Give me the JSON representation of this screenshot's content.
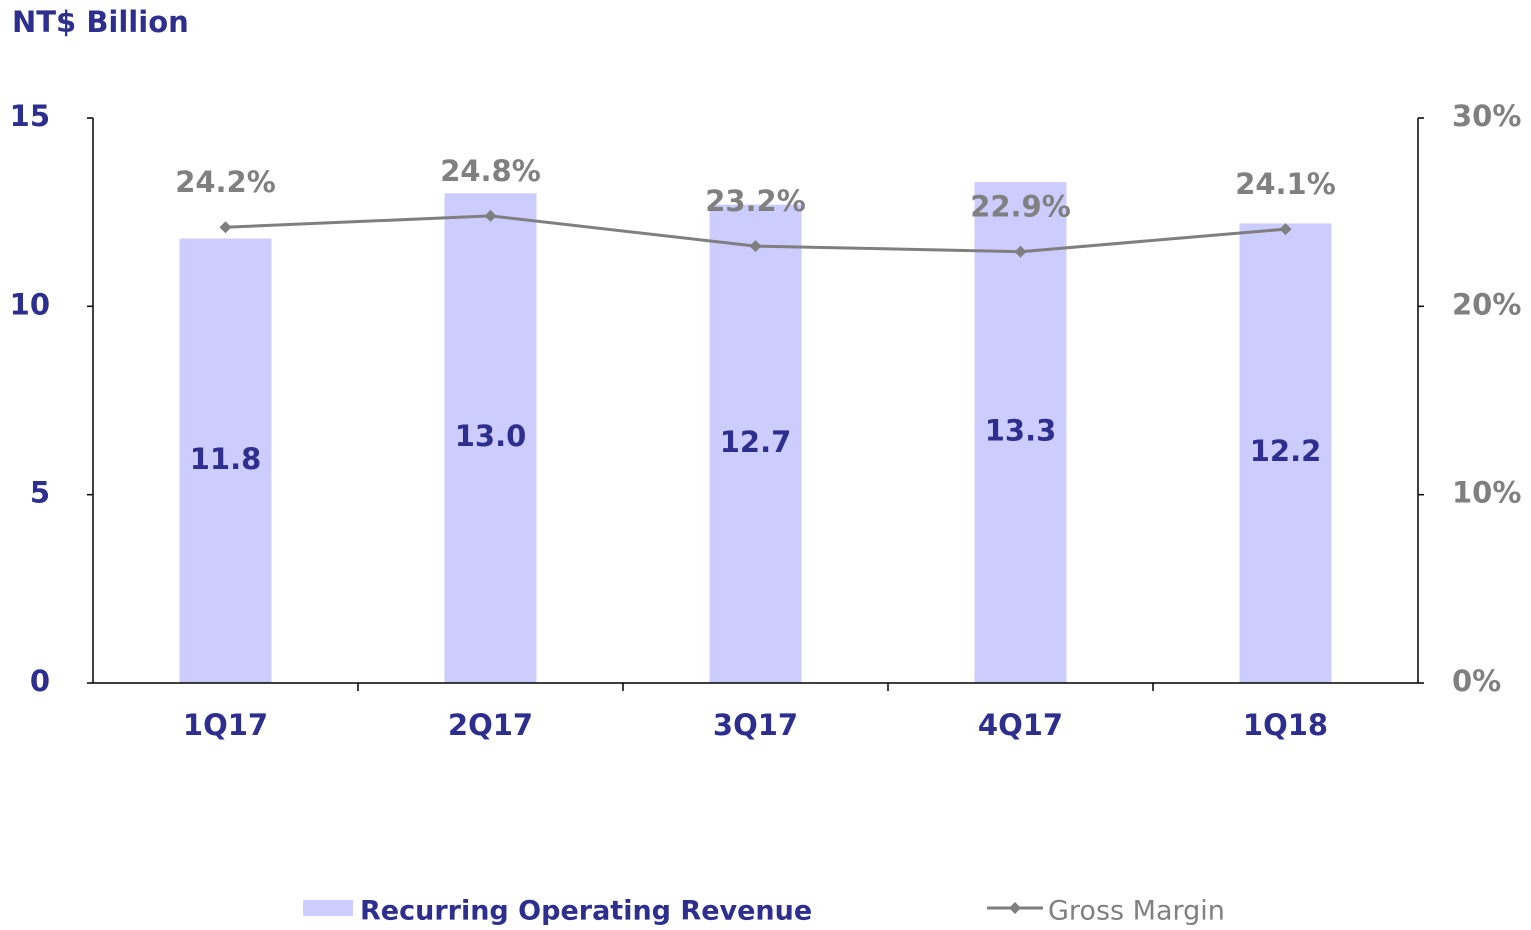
{
  "chart_data": {
    "type": "bar_line",
    "y_label": "NT$ Billion",
    "categories": [
      "1Q17",
      "2Q17",
      "3Q17",
      "4Q17",
      "1Q18"
    ],
    "series": [
      {
        "name": "Recurring Operating Revenue",
        "type": "bar",
        "color": "#ccccff",
        "values": [
          11.8,
          13.0,
          12.7,
          13.3,
          12.2
        ],
        "value_labels": [
          "11.8",
          "13.0",
          "12.7",
          "13.3",
          "12.2"
        ]
      },
      {
        "name": "Gross Margin",
        "type": "line",
        "axis": "y2",
        "color": "#7f7f7f",
        "values": [
          24.2,
          24.8,
          23.2,
          22.9,
          24.1
        ],
        "value_labels": [
          "24.2%",
          "24.8%",
          "23.2%",
          "22.9%",
          "24.1%"
        ]
      }
    ],
    "ylim": [
      0,
      15
    ],
    "yticks": [
      0,
      5,
      10,
      15
    ],
    "y2lim": [
      0,
      30
    ],
    "y2ticks": [
      {
        "value": 0,
        "label": "0%"
      },
      {
        "value": 10,
        "label": "10%"
      },
      {
        "value": 20,
        "label": "20%"
      },
      {
        "value": 30,
        "label": "30%"
      }
    ],
    "grid": false
  }
}
